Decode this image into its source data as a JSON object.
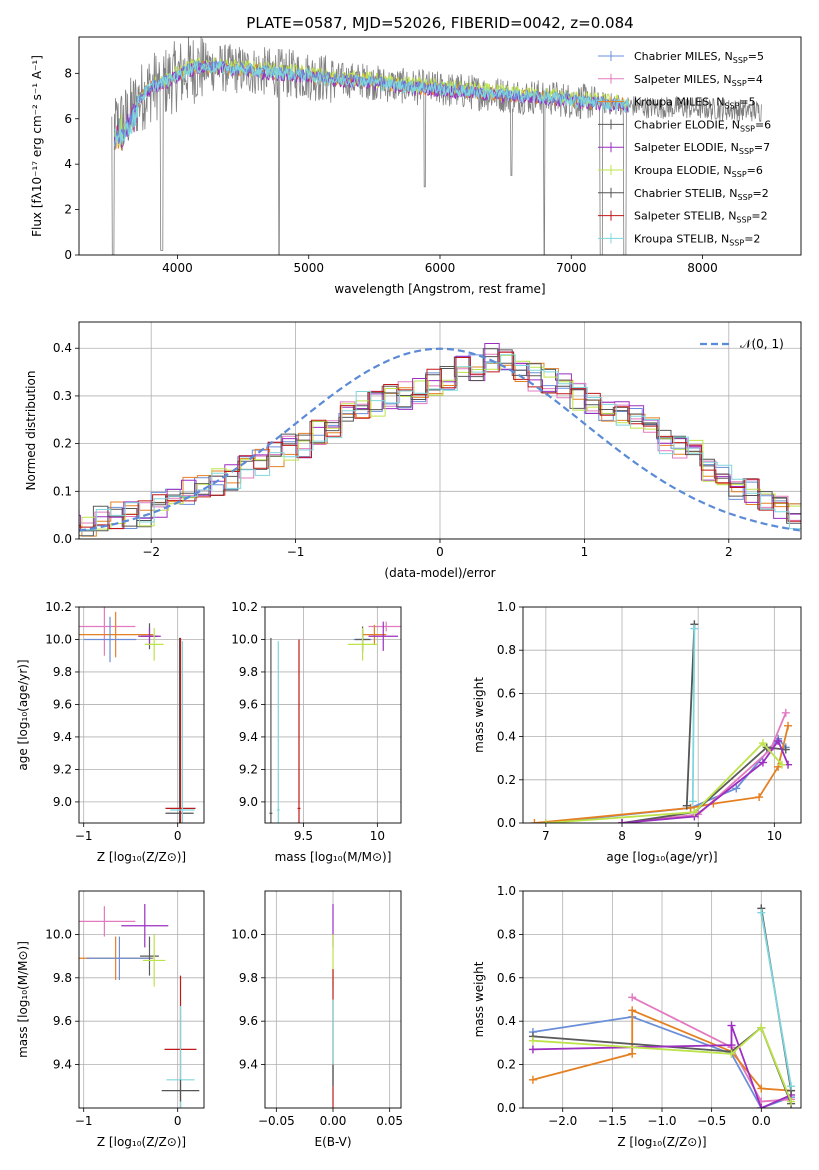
{
  "title": "PLATE=0587, MJD=52026, FIBERID=0042, z=0.084",
  "colors": {
    "chabrier_miles": "#6a8fd8",
    "salpeter_miles": "#e27ac0",
    "kroupa_miles": "#e58022",
    "chabrier_elodie": "#5a5a5a",
    "salpeter_elodie": "#9c2ec0",
    "kroupa_elodie": "#bde34a",
    "chabrier_stelib": "#555555",
    "salpeter_stelib": "#c01818",
    "kroupa_stelib": "#7fd6dc",
    "data": "#808080",
    "normal": "#5b8ad6"
  },
  "chart_data": [
    {
      "id": "spectrum",
      "type": "line",
      "xlabel": "wavelength [Angstrom, rest frame]",
      "ylabel": "Flux [fλ10⁻¹⁷ erg cm⁻² s⁻¹ A⁻¹]",
      "xlim": [
        3250,
        8750
      ],
      "ylim": [
        0,
        9.6
      ],
      "xticks": [
        4000,
        5000,
        6000,
        7000,
        8000
      ],
      "yticks": [
        0,
        2,
        4,
        6,
        8
      ],
      "continuum": {
        "x": [
          3500,
          3600,
          3700,
          3800,
          3900,
          4000,
          4100,
          4200,
          4400,
          4600,
          4800,
          5000,
          5200,
          5400,
          5600,
          5800,
          6000,
          6200,
          6400,
          6600,
          6800,
          7000,
          7200,
          7400,
          7600,
          7800,
          8000,
          8200,
          8400
        ],
        "y": [
          5.6,
          5.9,
          6.8,
          7.4,
          7.6,
          7.9,
          8.2,
          8.3,
          8.2,
          8.1,
          8.0,
          7.9,
          7.7,
          7.7,
          7.5,
          7.4,
          7.3,
          7.2,
          7.1,
          7.0,
          6.95,
          6.8,
          6.7,
          6.6,
          6.5,
          6.5,
          6.45,
          6.4,
          6.35
        ]
      },
      "legend": [
        {
          "label": "Chabrier MILES, N",
          "sub": "SSP",
          "tail": "=5"
        },
        {
          "label": "Salpeter MILES, N",
          "sub": "SSP",
          "tail": "=4"
        },
        {
          "label": "Kroupa MILES, N",
          "sub": "SSP",
          "tail": "=5"
        },
        {
          "label": "Chabrier ELODIE, N",
          "sub": "SSP",
          "tail": "=6"
        },
        {
          "label": "Salpeter ELODIE, N",
          "sub": "SSP",
          "tail": "=7"
        },
        {
          "label": "Kroupa ELODIE, N",
          "sub": "SSP",
          "tail": "=6"
        },
        {
          "label": "Chabrier STELIB, N",
          "sub": "SSP",
          "tail": "=2"
        },
        {
          "label": "Salpeter STELIB, N",
          "sub": "SSP",
          "tail": "=2"
        },
        {
          "label": "Kroupa STELIB, N",
          "sub": "SSP",
          "tail": "=2"
        }
      ]
    },
    {
      "id": "residuals",
      "type": "bar",
      "xlabel": "(data-model)/error",
      "ylabel": "Normed distribution",
      "xlim": [
        -2.5,
        2.5
      ],
      "ylim": [
        0,
        0.455
      ],
      "xticks": [
        -2,
        -1,
        0,
        1,
        2
      ],
      "yticks": [
        0.0,
        0.1,
        0.2,
        0.3,
        0.4
      ],
      "bin_width": 0.1,
      "normal_label": "𝒩(0, 1)",
      "base_hist": [
        0.03,
        0.03,
        0.04,
        0.05,
        0.05,
        0.05,
        0.07,
        0.08,
        0.1,
        0.11,
        0.12,
        0.13,
        0.15,
        0.16,
        0.18,
        0.19,
        0.2,
        0.22,
        0.24,
        0.27,
        0.28,
        0.28,
        0.3,
        0.3,
        0.31,
        0.33,
        0.34,
        0.36,
        0.36,
        0.38,
        0.37,
        0.36,
        0.34,
        0.33,
        0.32,
        0.3,
        0.29,
        0.27,
        0.26,
        0.26,
        0.24,
        0.2,
        0.19,
        0.18,
        0.15,
        0.13,
        0.11,
        0.1,
        0.09,
        0.07,
        0.05,
        0.04
      ]
    },
    {
      "id": "age-vs-Z",
      "type": "scatter",
      "xlabel": "Z [log₁₀(Z/Z⊙)]",
      "ylabel": "age  [log₁₀(age/yr)]",
      "xlim": [
        -1.05,
        0.28
      ],
      "ylim": [
        8.87,
        10.2
      ],
      "xticks": [
        -1,
        0
      ],
      "yticks": [
        9.0,
        9.2,
        9.4,
        9.6,
        9.8,
        10.0,
        10.2
      ],
      "points": [
        {
          "model": "salpeter_miles",
          "x": -0.78,
          "xerr": 0.33,
          "y": 10.08,
          "yerr": 0.18
        },
        {
          "model": "kroupa_miles",
          "x": -0.66,
          "xerr": 0.4,
          "y": 10.03,
          "yerr": 0.14
        },
        {
          "model": "chabrier_miles",
          "x": -0.72,
          "xerr": 0.28,
          "y": 10.0,
          "yerr": 0.14
        },
        {
          "model": "chabrier_elodie",
          "x": -0.3,
          "xerr": 0.09,
          "y": 10.02,
          "yerr": 0.08
        },
        {
          "model": "salpeter_elodie",
          "x": -0.3,
          "xerr": 0.12,
          "y": 10.02,
          "yerr": 0.05
        },
        {
          "model": "kroupa_elodie",
          "x": -0.25,
          "xerr": 0.1,
          "y": 9.97,
          "yerr": 0.1
        },
        {
          "model": "chabrier_stelib",
          "x": 0.02,
          "xerr": 0.15,
          "y": 8.93,
          "yerr": 1.08
        },
        {
          "model": "salpeter_stelib",
          "x": 0.03,
          "xerr": 0.16,
          "y": 8.96,
          "yerr": 1.05
        },
        {
          "model": "kroupa_stelib",
          "x": 0.05,
          "xerr": 0.13,
          "y": 8.95,
          "yerr": 1.04
        }
      ]
    },
    {
      "id": "age-vs-mass",
      "type": "scatter",
      "xlabel": "mass [log₁₀(M/M⊙)]",
      "ylabel": "",
      "xlim": [
        9.24,
        10.16
      ],
      "ylim": [
        8.87,
        10.2
      ],
      "xticks": [
        9.5,
        10.0
      ],
      "yticks": [
        9.0,
        9.2,
        9.4,
        9.6,
        9.8,
        10.0,
        10.2
      ],
      "points": [
        {
          "model": "salpeter_miles",
          "x": 10.06,
          "xerr": 0.12,
          "y": 10.08,
          "yerr": 0.03
        },
        {
          "model": "kroupa_miles",
          "x": 9.98,
          "xerr": 0.08,
          "y": 10.03,
          "yerr": 0.06
        },
        {
          "model": "chabrier_miles",
          "x": 9.9,
          "xerr": 0.06,
          "y": 10.0,
          "yerr": 0.06
        },
        {
          "model": "salpeter_elodie",
          "x": 10.04,
          "xerr": 0.1,
          "y": 10.02,
          "yerr": 0.09
        },
        {
          "model": "chabrier_elodie",
          "x": 9.9,
          "xerr": 0.05,
          "y": 10.0,
          "yerr": 0.08
        },
        {
          "model": "kroupa_elodie",
          "x": 9.9,
          "xerr": 0.1,
          "y": 9.97,
          "yerr": 0.1
        },
        {
          "model": "chabrier_stelib",
          "x": 9.28,
          "xerr": 0.01,
          "y": 8.93,
          "yerr": 1.08
        },
        {
          "model": "salpeter_stelib",
          "x": 9.47,
          "xerr": 0.01,
          "y": 8.96,
          "yerr": 1.04
        },
        {
          "model": "kroupa_stelib",
          "x": 9.33,
          "xerr": 0.01,
          "y": 8.95,
          "yerr": 1.04
        }
      ]
    },
    {
      "id": "weight-vs-age",
      "type": "line",
      "xlabel": "age  [log₁₀(age/yr)]",
      "ylabel": "mass weight",
      "xlim": [
        6.7,
        10.35
      ],
      "ylim": [
        0,
        1.0
      ],
      "xticks": [
        7,
        8,
        9,
        10
      ],
      "yticks": [
        0.0,
        0.2,
        0.4,
        0.6,
        0.8,
        1.0
      ],
      "series": [
        {
          "model": "chabrier_miles",
          "x": [
            7.0,
            8.9,
            9.5,
            10.05,
            10.15
          ],
          "y": [
            0.0,
            0.07,
            0.16,
            0.39,
            0.35
          ]
        },
        {
          "model": "salpeter_miles",
          "x": [
            8.0,
            9.0,
            9.95,
            10.15
          ],
          "y": [
            0.0,
            0.04,
            0.34,
            0.51
          ]
        },
        {
          "model": "kroupa_miles",
          "x": [
            6.85,
            8.9,
            9.2,
            9.8,
            10.05,
            10.18
          ],
          "y": [
            0.0,
            0.07,
            0.09,
            0.12,
            0.26,
            0.45
          ]
        },
        {
          "model": "chabrier_elodie",
          "x": [
            8.0,
            8.95,
            9.9,
            10.15
          ],
          "y": [
            0.0,
            0.05,
            0.35,
            0.34
          ]
        },
        {
          "model": "salpeter_elodie",
          "x": [
            8.0,
            8.95,
            9.85,
            10.05,
            10.18
          ],
          "y": [
            0.0,
            0.03,
            0.28,
            0.38,
            0.27
          ]
        },
        {
          "model": "kroupa_elodie",
          "x": [
            7.0,
            8.95,
            9.85,
            10.1
          ],
          "y": [
            0.0,
            0.05,
            0.37,
            0.27
          ]
        },
        {
          "model": "chabrier_stelib",
          "x": [
            8.85,
            8.95
          ],
          "y": [
            0.08,
            0.92
          ]
        },
        {
          "model": "kroupa_stelib",
          "x": [
            8.93,
            8.95
          ],
          "y": [
            0.1,
            0.9
          ]
        }
      ]
    },
    {
      "id": "mass-vs-Z",
      "type": "scatter",
      "xlabel": "Z [log₁₀(Z/Z⊙)]",
      "ylabel": "mass [log₁₀(M/M⊙)]",
      "xlim": [
        -1.05,
        0.28
      ],
      "ylim": [
        9.2,
        10.2
      ],
      "xticks": [
        -1,
        0
      ],
      "yticks": [
        9.4,
        9.6,
        9.8,
        10.0
      ],
      "points": [
        {
          "model": "salpeter_miles",
          "x": -0.78,
          "xerr": 0.33,
          "y": 10.06,
          "yerr": 0.07
        },
        {
          "model": "salpeter_elodie",
          "x": -0.35,
          "xerr": 0.25,
          "y": 10.04,
          "yerr": 0.1
        },
        {
          "model": "kroupa_miles",
          "x": -0.66,
          "xerr": 0.4,
          "y": 9.89,
          "yerr": 0.1
        },
        {
          "model": "chabrier_miles",
          "x": -0.62,
          "xerr": 0.35,
          "y": 9.89,
          "yerr": 0.1
        },
        {
          "model": "chabrier_elodie",
          "x": -0.3,
          "xerr": 0.1,
          "y": 9.9,
          "yerr": 0.09
        },
        {
          "model": "kroupa_elodie",
          "x": -0.25,
          "xerr": 0.12,
          "y": 9.88,
          "yerr": 0.12
        },
        {
          "model": "salpeter_stelib",
          "x": 0.03,
          "xerr": 0.17,
          "y": 9.47,
          "yerr": 0.34
        },
        {
          "model": "kroupa_stelib",
          "x": 0.03,
          "xerr": 0.15,
          "y": 9.33,
          "yerr": 0.34
        },
        {
          "model": "chabrier_stelib",
          "x": 0.03,
          "xerr": 0.2,
          "y": 9.28,
          "yerr": 0.05
        }
      ]
    },
    {
      "id": "mass-vs-ebv",
      "type": "scatter",
      "xlabel": "E(B-V)",
      "ylabel": "",
      "xlim": [
        -0.06,
        0.06
      ],
      "ylim": [
        9.2,
        10.2
      ],
      "xticks": [
        -0.05,
        0.0,
        0.05
      ],
      "xticklabels": [
        "−0.05",
        "0.00",
        "0.05"
      ],
      "yticks": [
        9.4,
        9.6,
        9.8,
        10.0
      ],
      "points": [
        {
          "model": "salpeter_elodie",
          "x": 0.0,
          "xerr": 0.0,
          "y": 10.04,
          "yerr": 0.1
        },
        {
          "model": "kroupa_elodie",
          "x": 0.0,
          "xerr": 0.0,
          "y": 9.88,
          "yerr": 0.12
        },
        {
          "model": "salpeter_stelib",
          "x": 0.0,
          "xerr": 0.0,
          "y": 9.5,
          "yerr": 0.34
        },
        {
          "model": "kroupa_stelib",
          "x": 0.0,
          "xerr": 0.0,
          "y": 9.5,
          "yerr": 0.2
        },
        {
          "model": "chabrier_stelib",
          "x": 0.0,
          "xerr": 0.0,
          "y": 9.35,
          "yerr": 0.05
        }
      ]
    },
    {
      "id": "weight-vs-Z",
      "type": "line",
      "xlabel": "Z [log₁₀(Z/Z⊙)]",
      "ylabel": "mass weight",
      "xlim": [
        -2.4,
        0.4
      ],
      "ylim": [
        0,
        1.0
      ],
      "xticks": [
        -2.0,
        -1.5,
        -1.0,
        -0.5,
        0.0
      ],
      "xticklabels": [
        "−2.0",
        "−1.5",
        "−1.0",
        "−0.5",
        "0.0"
      ],
      "yticks": [
        0.0,
        0.2,
        0.4,
        0.6,
        0.8,
        1.0
      ],
      "series": [
        {
          "model": "chabrier_miles",
          "x": [
            -2.3,
            -1.3,
            -0.3,
            0.0,
            0.3
          ],
          "y": [
            0.35,
            0.42,
            0.25,
            0.0,
            0.05
          ]
        },
        {
          "model": "salpeter_miles",
          "x": [
            -1.3,
            -0.3,
            0.0,
            0.3
          ],
          "y": [
            0.51,
            0.28,
            0.03,
            0.04
          ]
        },
        {
          "model": "kroupa_miles",
          "x": [
            -2.3,
            -1.3,
            -1.3,
            -0.3,
            0.0,
            0.3
          ],
          "y": [
            0.13,
            0.25,
            0.45,
            0.26,
            0.09,
            0.08
          ]
        },
        {
          "model": "chabrier_elodie",
          "x": [
            -2.3,
            -0.3,
            0.0,
            0.3
          ],
          "y": [
            0.33,
            0.26,
            0.37,
            0.02
          ]
        },
        {
          "model": "salpeter_elodie",
          "x": [
            -2.3,
            -0.3,
            -0.3,
            0.0,
            0.3
          ],
          "y": [
            0.27,
            0.29,
            0.38,
            0.0,
            0.06
          ]
        },
        {
          "model": "kroupa_elodie",
          "x": [
            -2.3,
            -0.3,
            0.0,
            0.3
          ],
          "y": [
            0.31,
            0.25,
            0.37,
            0.03
          ]
        },
        {
          "model": "chabrier_stelib",
          "x": [
            0.0,
            0.3
          ],
          "y": [
            0.92,
            0.08
          ]
        },
        {
          "model": "kroupa_stelib",
          "x": [
            0.0,
            0.3
          ],
          "y": [
            0.9,
            0.1
          ]
        }
      ]
    }
  ]
}
